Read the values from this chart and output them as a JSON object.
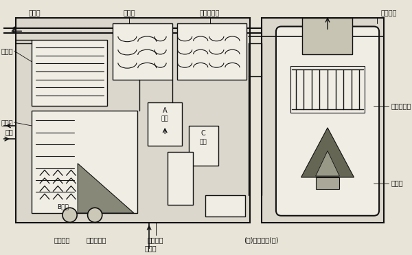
{
  "bg_color": "#e8e4d8",
  "line_color": "#111111",
  "fill_light": "#dbd7cc",
  "fill_white": "#f0ede4",
  "labels": {
    "냉각수_top": "냉각수",
    "용축기": "용축기",
    "저온재생기": "저온재생기",
    "배기가스": "배기가스",
    "흡수기": "흡수기",
    "증발기": "증발기",
    "고온재생기": "고온재생기",
    "냉수": "냉수",
    "A밸브": "A\n밸브",
    "C밸브": "C\n밸브",
    "B밸브": "B밸브",
    "버어너": "버어너",
    "냉매펌프": "냉매펌프",
    "흡수액펌프": "흡수액펌프",
    "추기장치": "추기장치",
    "냉각수_bottom": "냉각수",
    "열교환기": "(저)열교환기(고)"
  },
  "font_size": 7.0,
  "lw": 1.0
}
